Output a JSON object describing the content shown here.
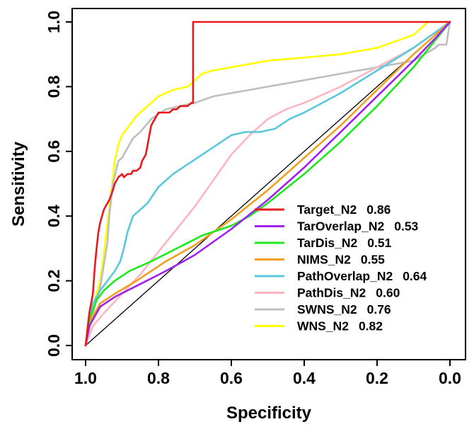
{
  "chart_data": {
    "type": "line",
    "title": "",
    "xlabel": "Specificity",
    "ylabel": "Sensitivity",
    "xlim": [
      1.0,
      0.0
    ],
    "ylim": [
      0.0,
      1.0
    ],
    "x_reversed": true,
    "grid": false,
    "legend_position": "bottom-right",
    "x_ticks": [
      {
        "value": 1.0,
        "label": "1.0"
      },
      {
        "value": 0.8,
        "label": "0.8"
      },
      {
        "value": 0.6,
        "label": "0.6"
      },
      {
        "value": 0.4,
        "label": "0.4"
      },
      {
        "value": 0.2,
        "label": "0.2"
      },
      {
        "value": 0.0,
        "label": "0.0"
      }
    ],
    "y_ticks": [
      {
        "value": 0.0,
        "label": "0.0"
      },
      {
        "value": 0.2,
        "label": "0.2"
      },
      {
        "value": 0.4,
        "label": "0.4"
      },
      {
        "value": 0.6,
        "label": "0.6"
      },
      {
        "value": 0.8,
        "label": "0.8"
      },
      {
        "value": 1.0,
        "label": "1.0"
      }
    ],
    "reference_line": {
      "from": [
        1.0,
        0.0
      ],
      "to": [
        0.0,
        1.0
      ],
      "color": "#000000"
    },
    "series": [
      {
        "name": "Target_N2",
        "auc": "0.86",
        "color": "#e8191d",
        "specificity": [
          1.0,
          0.99,
          0.98,
          0.975,
          0.97,
          0.965,
          0.96,
          0.955,
          0.95,
          0.945,
          0.94,
          0.935,
          0.925,
          0.92,
          0.91,
          0.9,
          0.895,
          0.885,
          0.875,
          0.87,
          0.86,
          0.85,
          0.845,
          0.835,
          0.83,
          0.825,
          0.82,
          0.81,
          0.8,
          0.79,
          0.78,
          0.77,
          0.76,
          0.75,
          0.74,
          0.73,
          0.72,
          0.71,
          0.705,
          0.705,
          0.0
        ],
        "sensitivity": [
          0.0,
          0.1,
          0.16,
          0.24,
          0.3,
          0.35,
          0.38,
          0.4,
          0.42,
          0.43,
          0.44,
          0.45,
          0.48,
          0.5,
          0.52,
          0.53,
          0.52,
          0.53,
          0.53,
          0.54,
          0.54,
          0.55,
          0.57,
          0.59,
          0.62,
          0.65,
          0.68,
          0.7,
          0.72,
          0.72,
          0.72,
          0.72,
          0.73,
          0.73,
          0.74,
          0.74,
          0.74,
          0.75,
          0.75,
          1.0,
          1.0
        ]
      },
      {
        "name": "TarOverlap_N2",
        "auc": "0.53",
        "color": "#a020f0",
        "specificity": [
          1.0,
          0.99,
          0.96,
          0.92,
          0.85,
          0.78,
          0.7,
          0.6,
          0.5,
          0.4,
          0.3,
          0.2,
          0.1,
          0.04,
          0.0
        ],
        "sensitivity": [
          0.0,
          0.06,
          0.12,
          0.15,
          0.19,
          0.23,
          0.28,
          0.36,
          0.45,
          0.55,
          0.66,
          0.77,
          0.88,
          0.95,
          1.0
        ]
      },
      {
        "name": "TarDis_N2",
        "auc": "0.51",
        "color": "#1ee81e",
        "specificity": [
          1.0,
          0.99,
          0.97,
          0.95,
          0.92,
          0.88,
          0.82,
          0.75,
          0.68,
          0.6,
          0.55,
          0.5,
          0.4,
          0.3,
          0.2,
          0.1,
          0.05,
          0.0
        ],
        "sensitivity": [
          0.0,
          0.08,
          0.14,
          0.17,
          0.2,
          0.23,
          0.26,
          0.3,
          0.34,
          0.37,
          0.4,
          0.44,
          0.53,
          0.63,
          0.74,
          0.86,
          0.93,
          1.0
        ]
      },
      {
        "name": "NIMS_N2",
        "auc": "0.55",
        "color": "#f0a020",
        "specificity": [
          1.0,
          0.99,
          0.96,
          0.92,
          0.86,
          0.78,
          0.7,
          0.6,
          0.5,
          0.4,
          0.3,
          0.2,
          0.1,
          0.04,
          0.0
        ],
        "sensitivity": [
          0.0,
          0.07,
          0.13,
          0.16,
          0.2,
          0.26,
          0.31,
          0.39,
          0.48,
          0.58,
          0.68,
          0.79,
          0.9,
          0.96,
          1.0
        ]
      },
      {
        "name": "PathOverlap_N2",
        "auc": "0.64",
        "color": "#5ac8dc",
        "specificity": [
          1.0,
          0.99,
          0.98,
          0.96,
          0.94,
          0.92,
          0.905,
          0.895,
          0.885,
          0.87,
          0.85,
          0.83,
          0.8,
          0.76,
          0.72,
          0.68,
          0.64,
          0.6,
          0.56,
          0.52,
          0.48,
          0.44,
          0.4,
          0.3,
          0.2,
          0.1,
          0.05,
          0.0
        ],
        "sensitivity": [
          0.0,
          0.08,
          0.13,
          0.17,
          0.2,
          0.23,
          0.26,
          0.3,
          0.35,
          0.4,
          0.42,
          0.44,
          0.49,
          0.53,
          0.56,
          0.59,
          0.62,
          0.65,
          0.66,
          0.66,
          0.67,
          0.7,
          0.72,
          0.78,
          0.85,
          0.92,
          0.96,
          1.0
        ]
      },
      {
        "name": "PathDis_N2",
        "auc": "0.60",
        "color": "#ffb6c1",
        "specificity": [
          1.0,
          0.98,
          0.95,
          0.9,
          0.85,
          0.8,
          0.75,
          0.7,
          0.65,
          0.6,
          0.55,
          0.5,
          0.45,
          0.4,
          0.3,
          0.2,
          0.1,
          0.05,
          0.0
        ],
        "sensitivity": [
          0.0,
          0.06,
          0.1,
          0.16,
          0.22,
          0.29,
          0.36,
          0.43,
          0.51,
          0.59,
          0.65,
          0.7,
          0.73,
          0.75,
          0.8,
          0.86,
          0.92,
          0.96,
          1.0
        ]
      },
      {
        "name": "SWNS_N2",
        "auc": "0.76",
        "color": "#bebebe",
        "specificity": [
          1.0,
          0.99,
          0.98,
          0.96,
          0.95,
          0.94,
          0.935,
          0.925,
          0.91,
          0.9,
          0.89,
          0.87,
          0.85,
          0.82,
          0.78,
          0.74,
          0.7,
          0.65,
          0.6,
          0.55,
          0.5,
          0.4,
          0.3,
          0.2,
          0.1,
          0.04,
          0.03,
          0.01,
          0.0
        ],
        "sensitivity": [
          0.0,
          0.05,
          0.1,
          0.18,
          0.25,
          0.32,
          0.4,
          0.5,
          0.57,
          0.58,
          0.6,
          0.64,
          0.66,
          0.7,
          0.73,
          0.74,
          0.75,
          0.77,
          0.78,
          0.79,
          0.8,
          0.82,
          0.84,
          0.86,
          0.88,
          0.92,
          0.93,
          0.93,
          1.0
        ]
      },
      {
        "name": "WNS_N2",
        "auc": "0.82",
        "color": "#ffff00",
        "specificity": [
          1.0,
          0.99,
          0.98,
          0.96,
          0.95,
          0.94,
          0.93,
          0.92,
          0.91,
          0.9,
          0.88,
          0.86,
          0.84,
          0.82,
          0.8,
          0.76,
          0.72,
          0.7,
          0.68,
          0.65,
          0.6,
          0.55,
          0.5,
          0.4,
          0.3,
          0.2,
          0.1,
          0.06,
          0.0
        ],
        "sensitivity": [
          0.0,
          0.06,
          0.12,
          0.2,
          0.28,
          0.38,
          0.47,
          0.57,
          0.62,
          0.65,
          0.68,
          0.71,
          0.73,
          0.75,
          0.77,
          0.79,
          0.8,
          0.82,
          0.84,
          0.85,
          0.86,
          0.87,
          0.88,
          0.89,
          0.9,
          0.92,
          0.96,
          1.0,
          1.0
        ]
      }
    ]
  }
}
